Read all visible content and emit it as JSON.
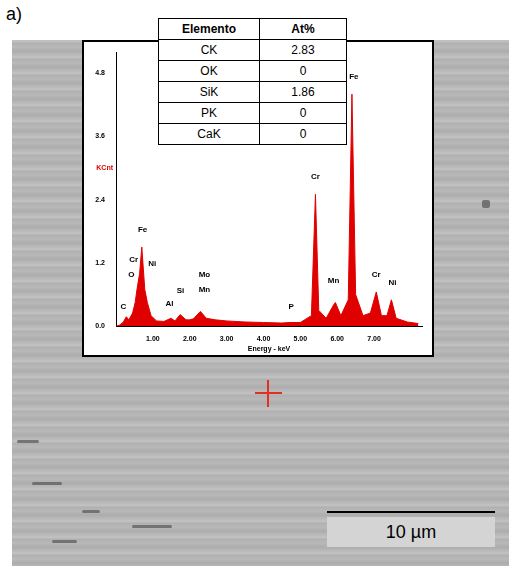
{
  "panel_label": "a)",
  "scale_bar": {
    "label": "10 µm"
  },
  "table": {
    "header": [
      "Elemento",
      "At%"
    ],
    "rows": [
      [
        "CK",
        2.83
      ],
      [
        "OK",
        0
      ],
      [
        "SiK",
        1.86
      ],
      [
        "PK",
        0
      ],
      [
        "CaK",
        0
      ]
    ]
  },
  "chart_data": {
    "type": "line",
    "x_label": "Energy - keV",
    "y_label": "KCnt",
    "x": [
      0.0,
      0.1,
      0.2,
      0.28,
      0.35,
      0.45,
      0.52,
      0.57,
      0.64,
      0.7,
      0.78,
      0.85,
      0.95,
      1.1,
      1.3,
      1.49,
      1.6,
      1.74,
      1.9,
      2.0,
      2.1,
      2.29,
      2.45,
      2.7,
      3.0,
      3.5,
      4.0,
      4.5,
      4.7,
      5.0,
      5.3,
      5.41,
      5.5,
      5.7,
      5.9,
      5.95,
      6.1,
      6.3,
      6.4,
      6.5,
      6.7,
      6.9,
      7.06,
      7.2,
      7.35,
      7.47,
      7.6,
      7.9,
      8.2
    ],
    "values": [
      0,
      0.02,
      0.08,
      0.18,
      0.12,
      0.25,
      0.45,
      0.7,
      1.0,
      1.5,
      0.7,
      0.45,
      0.2,
      0.1,
      0.09,
      0.15,
      0.1,
      0.22,
      0.12,
      0.12,
      0.14,
      0.28,
      0.15,
      0.12,
      0.1,
      0.08,
      0.07,
      0.06,
      0.07,
      0.07,
      0.2,
      2.5,
      0.3,
      0.15,
      0.4,
      0.45,
      0.2,
      0.5,
      4.4,
      0.6,
      0.2,
      0.25,
      0.65,
      0.2,
      0.2,
      0.5,
      0.15,
      0.08,
      0.05
    ],
    "color": "#e00000",
    "xlim": [
      0,
      8.3
    ],
    "xticks": [
      {
        "value": 1,
        "label": "1.00"
      },
      {
        "value": 2,
        "label": "2.00"
      },
      {
        "value": 3,
        "label": "3.00"
      },
      {
        "value": 4,
        "label": "4.00"
      },
      {
        "value": 5,
        "label": "5.00"
      },
      {
        "value": 6,
        "label": "6.00"
      },
      {
        "value": 7,
        "label": "7.00"
      }
    ],
    "ylim": [
      0,
      5.2
    ],
    "yticks": [
      {
        "value": 0,
        "label": "0.0"
      },
      1.2,
      2.4,
      3.6,
      4.8
    ],
    "grid": false,
    "annotations": [
      {
        "text": "C",
        "x": 0.2,
        "y": 0.3
      },
      {
        "text": "O",
        "x": 0.42,
        "y": 0.9
      },
      {
        "text": "Cr",
        "x": 0.48,
        "y": 1.18
      },
      {
        "text": "Fe",
        "x": 0.72,
        "y": 1.75
      },
      {
        "text": "Ni",
        "x": 0.98,
        "y": 1.1
      },
      {
        "text": "Al",
        "x": 1.45,
        "y": 0.35
      },
      {
        "text": "Si",
        "x": 1.75,
        "y": 0.6
      },
      {
        "text": "Mo",
        "x": 2.4,
        "y": 0.9
      },
      {
        "text": "Mn",
        "x": 2.4,
        "y": 0.62
      },
      {
        "text": "P",
        "x": 4.75,
        "y": 0.3
      },
      {
        "text": "Cr",
        "x": 5.41,
        "y": 2.75
      },
      {
        "text": "Mn",
        "x": 5.9,
        "y": 0.78
      },
      {
        "text": "Fe",
        "x": 6.45,
        "y": 4.65
      },
      {
        "text": "Cr",
        "x": 7.06,
        "y": 0.9
      },
      {
        "text": "Ni",
        "x": 7.5,
        "y": 0.75
      }
    ]
  }
}
